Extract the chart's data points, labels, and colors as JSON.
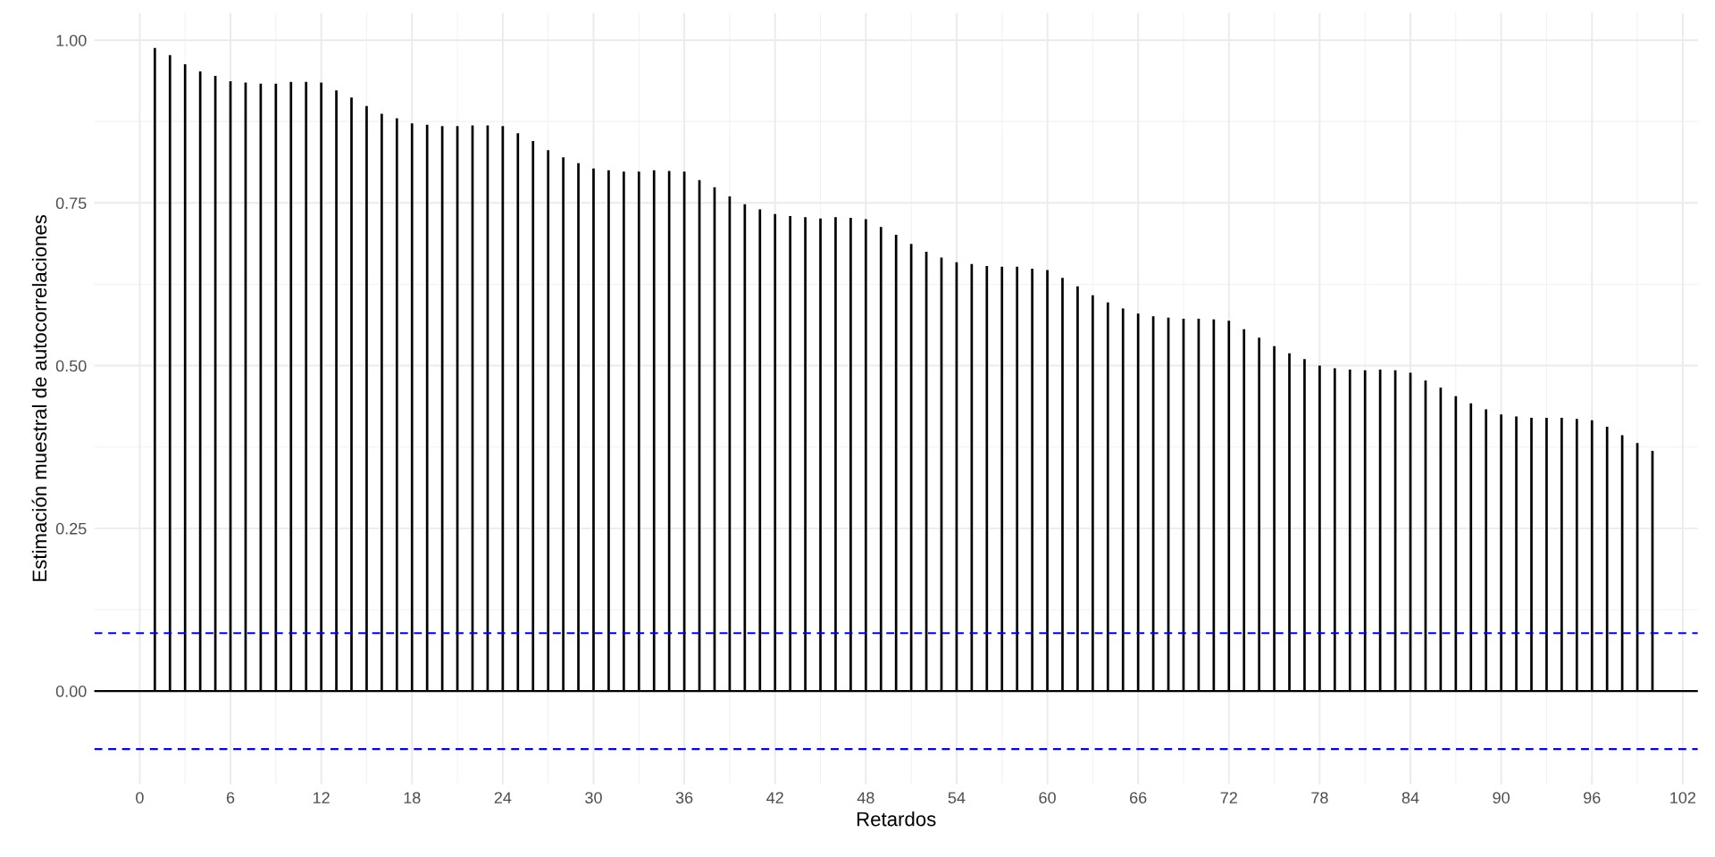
{
  "chart_data": {
    "type": "bar",
    "xlabel": "Retardos",
    "ylabel": "Estimación muestral de autocorrelaciones",
    "x": [
      1,
      2,
      3,
      4,
      5,
      6,
      7,
      8,
      9,
      10,
      11,
      12,
      13,
      14,
      15,
      16,
      17,
      18,
      19,
      20,
      21,
      22,
      23,
      24,
      25,
      26,
      27,
      28,
      29,
      30,
      31,
      32,
      33,
      34,
      35,
      36,
      37,
      38,
      39,
      40,
      41,
      42,
      43,
      44,
      45,
      46,
      47,
      48,
      49,
      50,
      51,
      52,
      53,
      54,
      55,
      56,
      57,
      58,
      59,
      60,
      61,
      62,
      63,
      64,
      65,
      66,
      67,
      68,
      69,
      70,
      71,
      72,
      73,
      74,
      75,
      76,
      77,
      78,
      79,
      80,
      81,
      82,
      83,
      84,
      85,
      86,
      87,
      88,
      89,
      90,
      91,
      92,
      93,
      94,
      95,
      96,
      97,
      98,
      99,
      100
    ],
    "series": [
      {
        "color": "#000000",
        "values": [
          0.988,
          0.977,
          0.963,
          0.952,
          0.945,
          0.937,
          0.935,
          0.933,
          0.933,
          0.936,
          0.936,
          0.935,
          0.923,
          0.912,
          0.899,
          0.887,
          0.88,
          0.872,
          0.87,
          0.868,
          0.868,
          0.869,
          0.869,
          0.868,
          0.857,
          0.845,
          0.831,
          0.82,
          0.811,
          0.803,
          0.8,
          0.798,
          0.798,
          0.8,
          0.799,
          0.798,
          0.785,
          0.774,
          0.76,
          0.748,
          0.74,
          0.733,
          0.73,
          0.728,
          0.726,
          0.728,
          0.727,
          0.725,
          0.713,
          0.701,
          0.687,
          0.675,
          0.666,
          0.659,
          0.656,
          0.653,
          0.652,
          0.652,
          0.649,
          0.647,
          0.635,
          0.622,
          0.608,
          0.597,
          0.588,
          0.58,
          0.576,
          0.574,
          0.572,
          0.572,
          0.571,
          0.569,
          0.556,
          0.543,
          0.53,
          0.519,
          0.51,
          0.5,
          0.496,
          0.494,
          0.493,
          0.494,
          0.493,
          0.489,
          0.477,
          0.466,
          0.453,
          0.442,
          0.433,
          0.425,
          0.422,
          0.42,
          0.42,
          0.42,
          0.418,
          0.416,
          0.406,
          0.393,
          0.381,
          0.369
        ]
      }
    ],
    "xlim": [
      -3,
      103
    ],
    "xticks": [
      0,
      6,
      12,
      18,
      24,
      30,
      36,
      42,
      48,
      54,
      60,
      66,
      72,
      78,
      84,
      90,
      96,
      102
    ],
    "ylim": [
      -0.143,
      1.042
    ],
    "yticks": [
      {
        "value": 0,
        "label": "0.00"
      },
      {
        "value": 0.25,
        "label": "0.25"
      },
      {
        "value": 0.5,
        "label": "0.50"
      },
      {
        "value": 0.75,
        "label": "0.75"
      },
      {
        "value": 1,
        "label": "1.00"
      }
    ],
    "ref_lines": [
      {
        "axis": "y",
        "value": 0,
        "color": "#000000",
        "line_style": "solid"
      },
      {
        "axis": "y",
        "value": 0.089,
        "color": "#0000ff",
        "line_style": "dashed"
      },
      {
        "axis": "y",
        "value": -0.089,
        "color": "#0000ff",
        "line_style": "dashed"
      }
    ],
    "grid": true
  }
}
